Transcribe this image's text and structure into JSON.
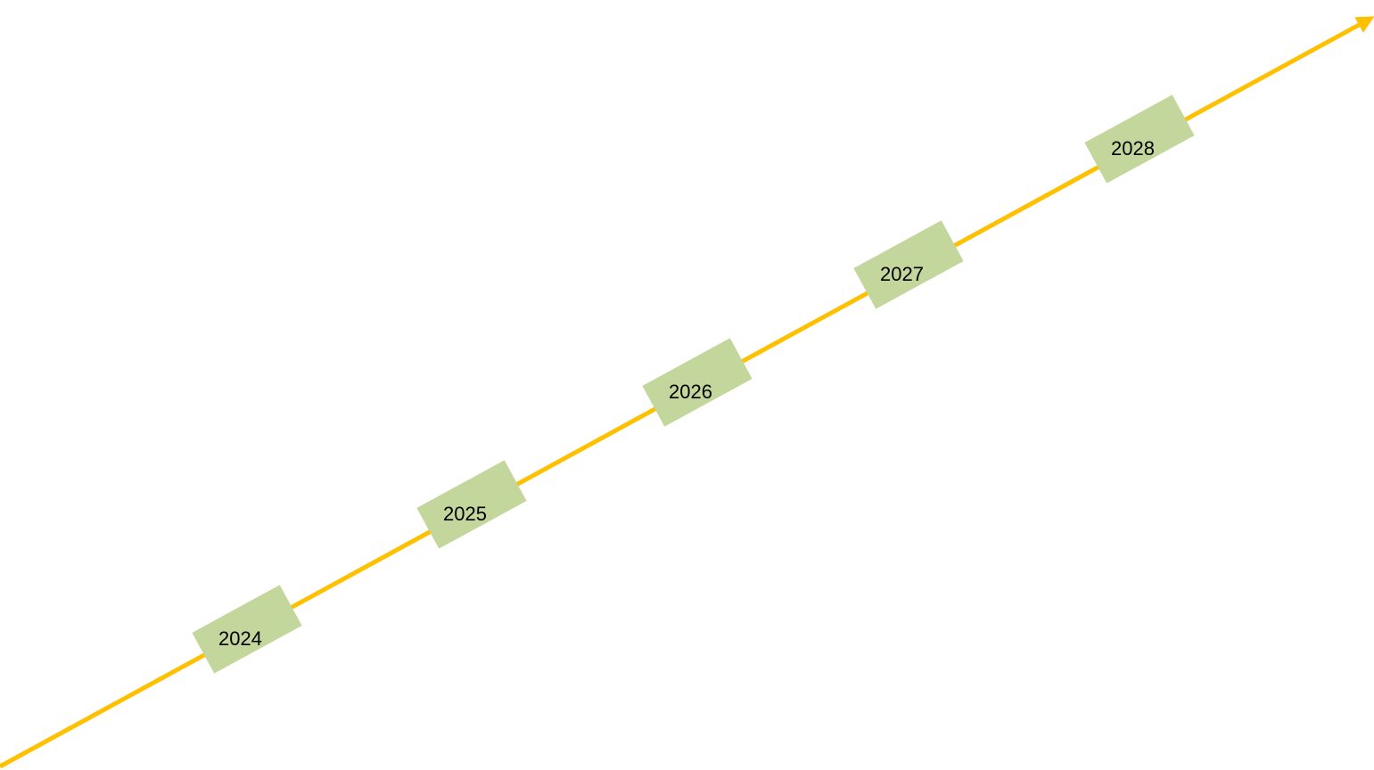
{
  "timeline": {
    "line_color": "#FFC000",
    "marker_color": "#C3D69B",
    "milestones": [
      {
        "label": "2024"
      },
      {
        "label": "2025"
      },
      {
        "label": "2026"
      },
      {
        "label": "2027"
      },
      {
        "label": "2028"
      }
    ]
  }
}
